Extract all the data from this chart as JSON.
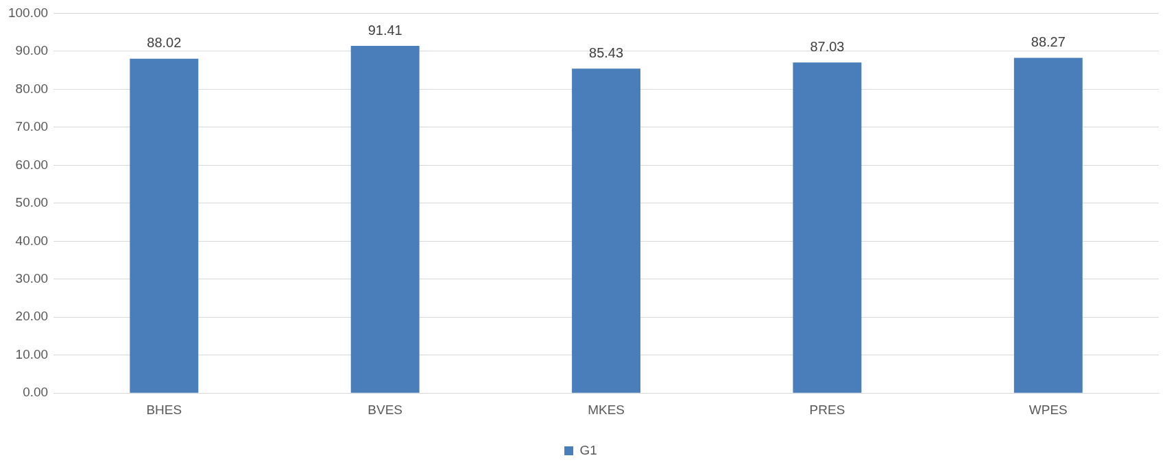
{
  "chart_data": {
    "type": "bar",
    "categories": [
      "BHES",
      "BVES",
      "MKES",
      "PRES",
      "WPES"
    ],
    "series": [
      {
        "name": "G1",
        "color": "#4a7ebb",
        "values": [
          88.02,
          91.41,
          85.43,
          87.03,
          88.27
        ]
      }
    ],
    "ylim": [
      0,
      100
    ],
    "yticks": [
      {
        "value": 0,
        "label": "0.00"
      },
      {
        "value": 10,
        "label": "10.00"
      },
      {
        "value": 20,
        "label": "20.00"
      },
      {
        "value": 30,
        "label": "30.00"
      },
      {
        "value": 40,
        "label": "40.00"
      },
      {
        "value": 50,
        "label": "50.00"
      },
      {
        "value": 60,
        "label": "60.00"
      },
      {
        "value": 70,
        "label": "70.00"
      },
      {
        "value": 80,
        "label": "80.00"
      },
      {
        "value": 90,
        "label": "90.00"
      },
      {
        "value": 100,
        "label": "100.00"
      }
    ],
    "grid": "y",
    "legend": "bottom",
    "data_labels": true
  }
}
